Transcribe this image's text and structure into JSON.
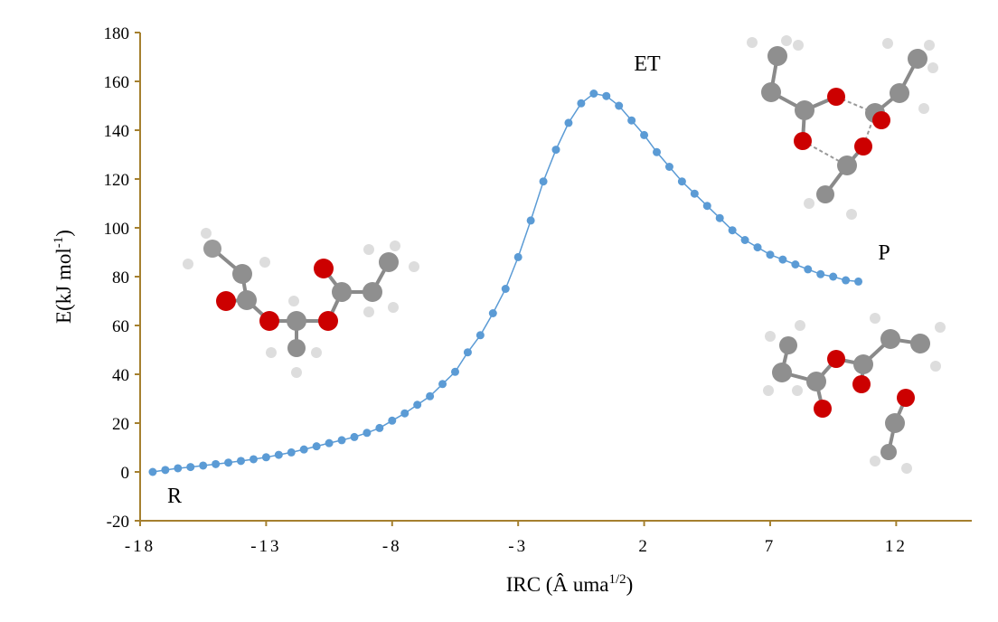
{
  "chart_data": {
    "type": "line",
    "xlabel": {
      "text": "IRC (Â uma",
      "sup": "1/2",
      "after": ")"
    },
    "ylabel": {
      "text": "E(kJ mol",
      "sup": "-1",
      "after": ")"
    },
    "annotations": [
      "ET",
      "R",
      "P"
    ],
    "x": [
      -17.5,
      -17,
      -16.5,
      -16,
      -15.5,
      -15,
      -14.5,
      -14,
      -13.5,
      -13,
      -12.5,
      -12,
      -11.5,
      -11,
      -10.5,
      -10,
      -9.5,
      -9,
      -8.5,
      -8,
      -7.5,
      -7,
      -6.5,
      -6,
      -5.5,
      -5,
      -4.5,
      -4,
      -3.5,
      -3,
      -2.5,
      -2,
      -1.5,
      -1,
      -0.5,
      0,
      0.5,
      1,
      1.5,
      2,
      2.5,
      3,
      3.5,
      4,
      4.5,
      5,
      5.5,
      6,
      6.5,
      7,
      7.5,
      8,
      8.5,
      9,
      9.5,
      10,
      10.5
    ],
    "y": [
      0,
      0.8,
      1.5,
      2,
      2.6,
      3.2,
      3.8,
      4.5,
      5.2,
      6,
      7,
      8,
      9.2,
      10.5,
      11.8,
      13,
      14.3,
      16,
      18,
      21,
      24,
      27.5,
      31,
      36,
      41,
      49,
      56,
      65,
      75,
      88,
      103,
      119,
      132,
      143,
      151,
      155,
      154,
      150,
      144,
      138,
      131,
      125,
      119,
      114,
      109,
      104,
      99,
      95,
      92,
      89,
      87,
      85,
      83,
      81,
      80,
      78.5,
      78
    ],
    "color": "#5b9bd5",
    "axis_color": "#a5802f",
    "xlim": [
      -18,
      15
    ],
    "xticks": [
      -18,
      -13,
      -8,
      -3,
      2,
      7,
      12
    ],
    "ylim": [
      -20,
      180
    ],
    "yticks": [
      -20,
      0,
      20,
      40,
      60,
      80,
      100,
      120,
      140,
      160,
      180
    ]
  }
}
